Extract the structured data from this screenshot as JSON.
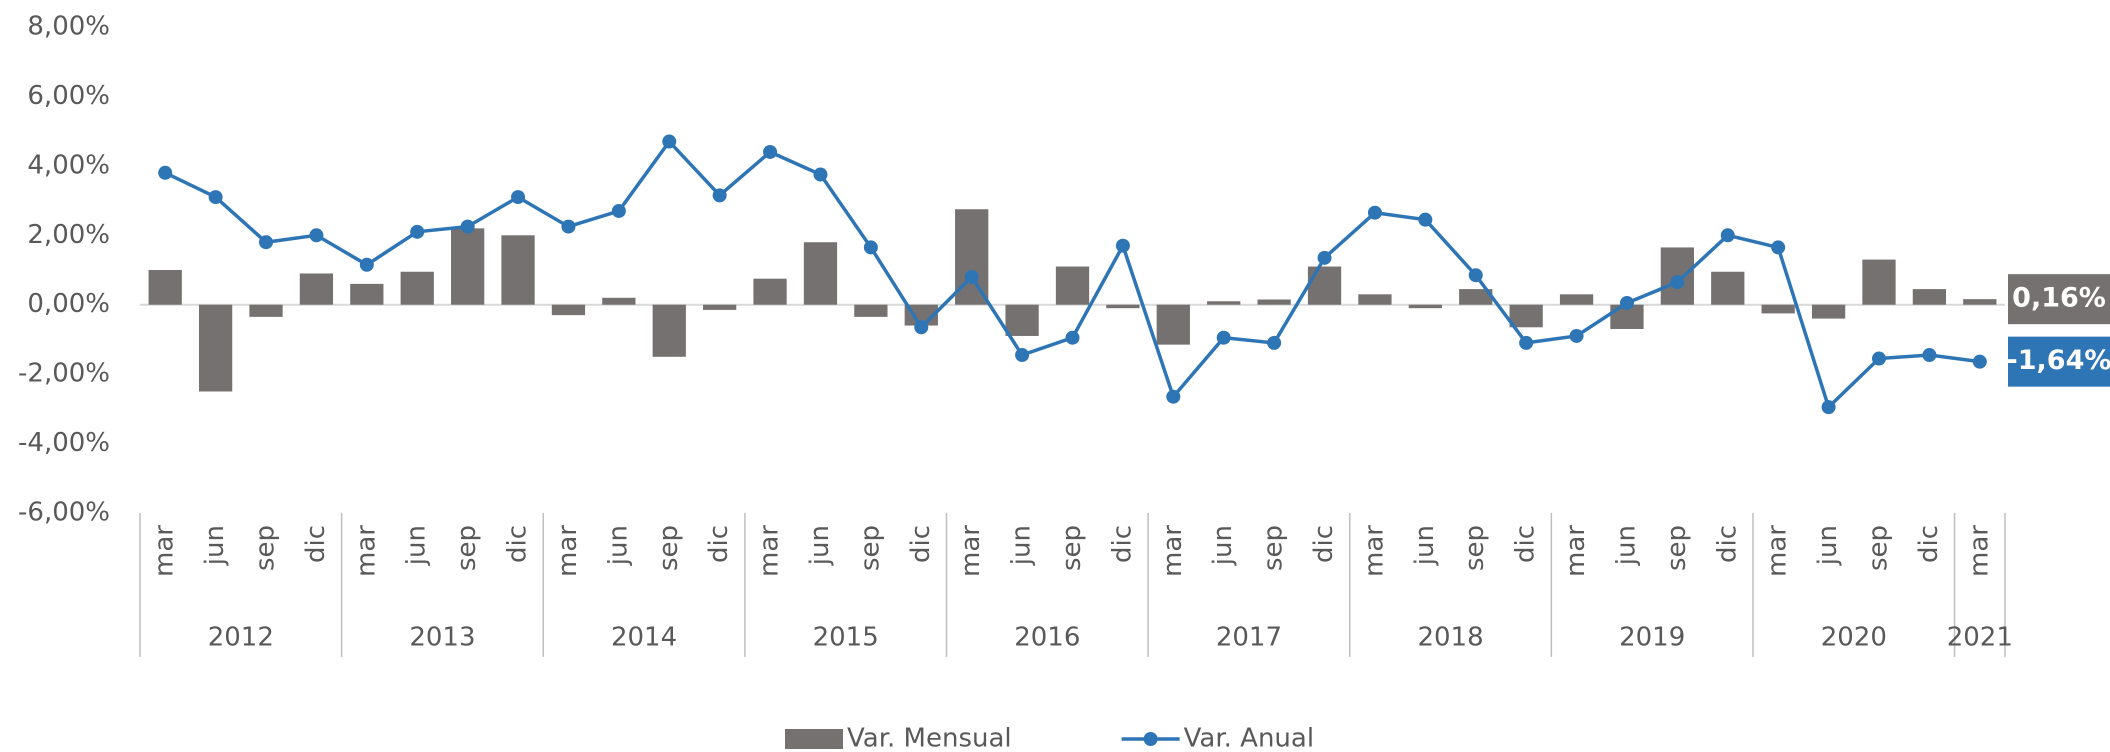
{
  "chart_data": {
    "type": "bar_line",
    "categories": [
      "mar",
      "jun",
      "sep",
      "dic",
      "mar",
      "jun",
      "sep",
      "dic",
      "mar",
      "jun",
      "sep",
      "dic",
      "mar",
      "jun",
      "sep",
      "dic",
      "mar",
      "jun",
      "sep",
      "dic",
      "mar",
      "jun",
      "sep",
      "dic",
      "mar",
      "jun",
      "sep",
      "dic",
      "mar",
      "jun",
      "sep",
      "dic",
      "mar",
      "jun",
      "sep",
      "dic",
      "mar"
    ],
    "years": [
      "2012",
      null,
      null,
      null,
      "2013",
      null,
      null,
      null,
      "2014",
      null,
      null,
      null,
      "2015",
      null,
      null,
      null,
      "2016",
      null,
      null,
      null,
      "2017",
      null,
      null,
      null,
      "2018",
      null,
      null,
      null,
      "2019",
      null,
      null,
      null,
      "2020",
      null,
      null,
      null,
      "2021"
    ],
    "series": [
      {
        "name": "Var. Mensual",
        "type": "bar",
        "color": "#767171",
        "values": [
          1.0,
          -2.5,
          -0.35,
          0.9,
          0.6,
          0.95,
          2.2,
          2.0,
          -0.3,
          0.2,
          -1.5,
          -0.15,
          0.75,
          1.8,
          -0.35,
          -0.6,
          2.75,
          -0.9,
          1.1,
          -0.1,
          -1.15,
          0.1,
          0.15,
          1.1,
          0.3,
          -0.1,
          0.45,
          -0.65,
          0.3,
          -0.7,
          1.65,
          0.95,
          -0.25,
          -0.4,
          1.3,
          0.45,
          0.16
        ],
        "value_labels": [
          null,
          null,
          null,
          null,
          null,
          null,
          null,
          null,
          null,
          null,
          null,
          null,
          null,
          null,
          null,
          null,
          null,
          null,
          null,
          null,
          null,
          null,
          null,
          null,
          null,
          null,
          null,
          null,
          null,
          null,
          null,
          null,
          null,
          null,
          null,
          null,
          "0,16%"
        ]
      },
      {
        "name": "Var. Anual",
        "type": "line",
        "color": "#2e75b6",
        "values": [
          3.8,
          3.1,
          1.8,
          2.0,
          1.15,
          2.1,
          2.25,
          3.1,
          2.25,
          2.7,
          4.7,
          3.15,
          4.4,
          3.75,
          1.65,
          -0.65,
          0.8,
          -1.45,
          -0.95,
          1.7,
          -2.65,
          -0.95,
          -1.1,
          1.35,
          2.65,
          2.45,
          0.85,
          -1.1,
          -0.9,
          0.05,
          0.65,
          2.0,
          1.65,
          -2.95,
          -1.55,
          -1.45,
          -1.64
        ],
        "value_labels": [
          null,
          null,
          null,
          null,
          null,
          null,
          null,
          null,
          null,
          null,
          null,
          null,
          null,
          null,
          null,
          null,
          null,
          null,
          null,
          null,
          null,
          null,
          null,
          null,
          null,
          null,
          null,
          null,
          null,
          null,
          null,
          null,
          null,
          null,
          null,
          null,
          "-1,64%"
        ]
      }
    ],
    "ylim": [
      -6,
      8
    ],
    "yticks": [
      {
        "value": -6,
        "label": "-6,00%"
      },
      {
        "value": -4,
        "label": "-4,00%"
      },
      {
        "value": -2,
        "label": "-2,00%"
      },
      {
        "value": 0,
        "label": "0,00%"
      },
      {
        "value": 2,
        "label": "2,00%"
      },
      {
        "value": 4,
        "label": "4,00%"
      },
      {
        "value": 6,
        "label": "6,00%"
      },
      {
        "value": 8,
        "label": "8,00%"
      }
    ],
    "legend": "bottom"
  }
}
